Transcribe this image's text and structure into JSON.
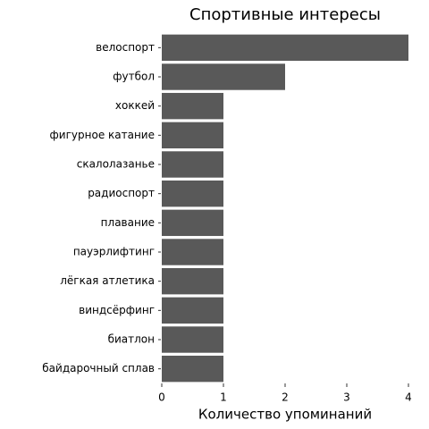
{
  "chart_data": {
    "type": "bar",
    "orientation": "horizontal",
    "title": "Спортивные интересы",
    "x_label": "Количество упоминаний",
    "categories": [
      "велоспорт",
      "футбол",
      "хоккей",
      "фигурное катание",
      "скалолазанье",
      "радиоспорт",
      "плавание",
      "пауэрлифтинг",
      "лёгкая атлетика",
      "виндсёрфинг",
      "биатлон",
      "байдарочный сплав"
    ],
    "values": [
      4,
      2,
      1,
      1,
      1,
      1,
      1,
      1,
      1,
      1,
      1,
      1
    ],
    "color": "#595959",
    "xlim": [
      0,
      4
    ],
    "xticks": [
      0,
      1,
      2,
      3,
      4
    ],
    "grid": false
  }
}
